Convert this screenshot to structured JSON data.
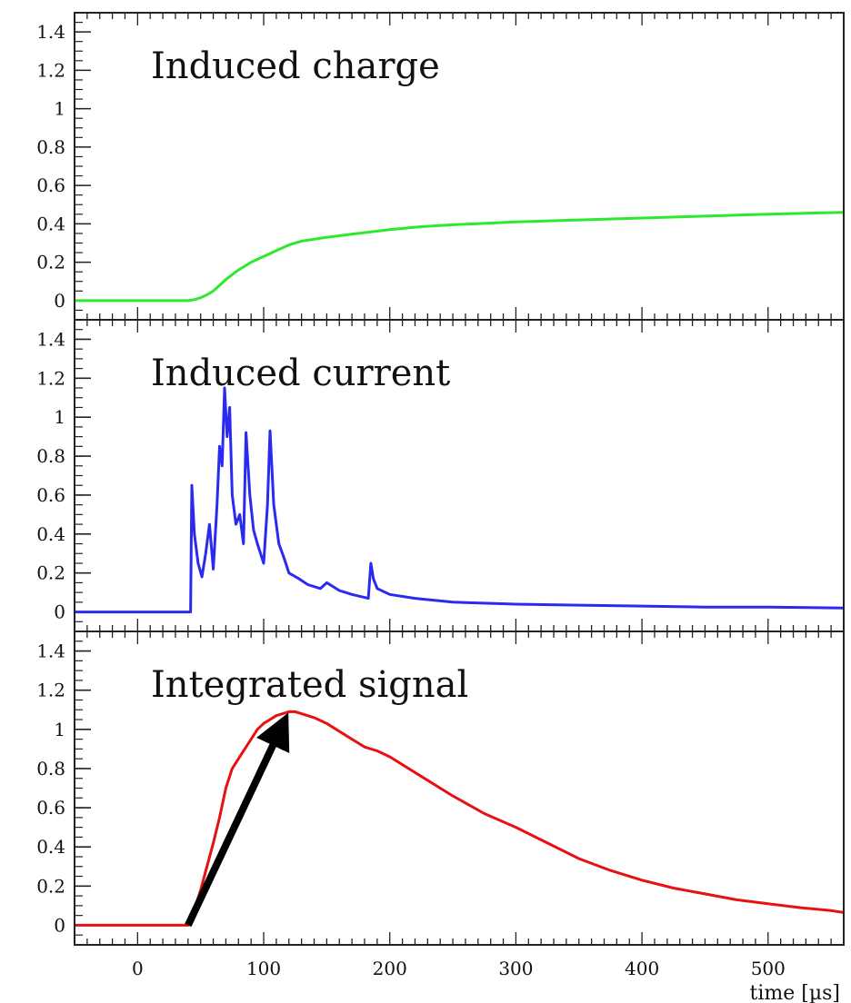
{
  "chart_data": [
    {
      "type": "line",
      "title": "Induced charge",
      "ylim": [
        -0.1,
        1.5
      ],
      "xlim": [
        -50,
        560
      ],
      "yticks": [
        "0",
        "0.2",
        "0.4",
        "0.6",
        "0.8",
        "1",
        "1.2",
        "1.4"
      ],
      "series": [
        {
          "color": "#2ee82e",
          "x": [
            -50,
            0,
            40,
            45,
            50,
            55,
            60,
            65,
            70,
            80,
            90,
            100,
            110,
            120,
            130,
            150,
            175,
            200,
            225,
            250,
            300,
            350,
            400,
            450,
            500,
            560
          ],
          "y": [
            0,
            0,
            0,
            0.005,
            0.015,
            0.03,
            0.05,
            0.08,
            0.11,
            0.16,
            0.2,
            0.23,
            0.26,
            0.29,
            0.31,
            0.33,
            0.35,
            0.37,
            0.385,
            0.395,
            0.41,
            0.42,
            0.43,
            0.44,
            0.45,
            0.46
          ]
        }
      ]
    },
    {
      "type": "line",
      "title": "Induced current",
      "ylim": [
        -0.1,
        1.5
      ],
      "xlim": [
        -50,
        560
      ],
      "yticks": [
        "0",
        "0.2",
        "0.4",
        "0.6",
        "0.8",
        "1",
        "1.2",
        "1.4"
      ],
      "series": [
        {
          "color": "#2a2af0",
          "x": [
            -50,
            0,
            42,
            43,
            45,
            48,
            51,
            54,
            57,
            60,
            63,
            65,
            67,
            69,
            71,
            73,
            75,
            78,
            81,
            84,
            86,
            89,
            92,
            95,
            100,
            103,
            105,
            108,
            112,
            116,
            120,
            128,
            135,
            145,
            150,
            160,
            170,
            183,
            185,
            187,
            190,
            200,
            220,
            250,
            300,
            350,
            400,
            450,
            500,
            560
          ],
          "y": [
            0,
            0,
            0,
            0.65,
            0.4,
            0.25,
            0.18,
            0.3,
            0.45,
            0.22,
            0.55,
            0.85,
            0.75,
            1.15,
            0.9,
            1.05,
            0.6,
            0.45,
            0.5,
            0.35,
            0.92,
            0.6,
            0.42,
            0.35,
            0.25,
            0.55,
            0.93,
            0.55,
            0.35,
            0.28,
            0.2,
            0.17,
            0.14,
            0.12,
            0.15,
            0.11,
            0.09,
            0.07,
            0.25,
            0.17,
            0.12,
            0.09,
            0.07,
            0.05,
            0.04,
            0.035,
            0.03,
            0.025,
            0.025,
            0.02
          ]
        }
      ]
    },
    {
      "type": "line",
      "title": "Integrated signal",
      "ylim": [
        -0.1,
        1.5
      ],
      "xlim": [
        -50,
        560
      ],
      "yticks": [
        "0",
        "0.2",
        "0.4",
        "0.6",
        "0.8",
        "1",
        "1.2",
        "1.4"
      ],
      "xticks": [
        0,
        100,
        200,
        300,
        400,
        500
      ],
      "xlabel": "time [µs]",
      "arrow": {
        "from": [
          40,
          0
        ],
        "to": [
          120,
          1.08
        ]
      },
      "series": [
        {
          "color": "#e81010",
          "x": [
            -50,
            0,
            40,
            45,
            50,
            55,
            60,
            65,
            70,
            75,
            80,
            85,
            90,
            95,
            100,
            105,
            110,
            115,
            120,
            125,
            130,
            140,
            150,
            160,
            170,
            180,
            190,
            200,
            220,
            250,
            275,
            300,
            325,
            350,
            375,
            400,
            425,
            450,
            475,
            500,
            525,
            550,
            560
          ],
          "y": [
            0,
            0,
            0,
            0.08,
            0.18,
            0.3,
            0.42,
            0.55,
            0.7,
            0.8,
            0.85,
            0.9,
            0.95,
            1.0,
            1.03,
            1.05,
            1.07,
            1.08,
            1.09,
            1.09,
            1.08,
            1.06,
            1.03,
            0.99,
            0.95,
            0.91,
            0.89,
            0.86,
            0.78,
            0.66,
            0.57,
            0.5,
            0.42,
            0.34,
            0.28,
            0.23,
            0.19,
            0.16,
            0.13,
            0.11,
            0.09,
            0.075,
            0.065
          ]
        }
      ]
    }
  ]
}
